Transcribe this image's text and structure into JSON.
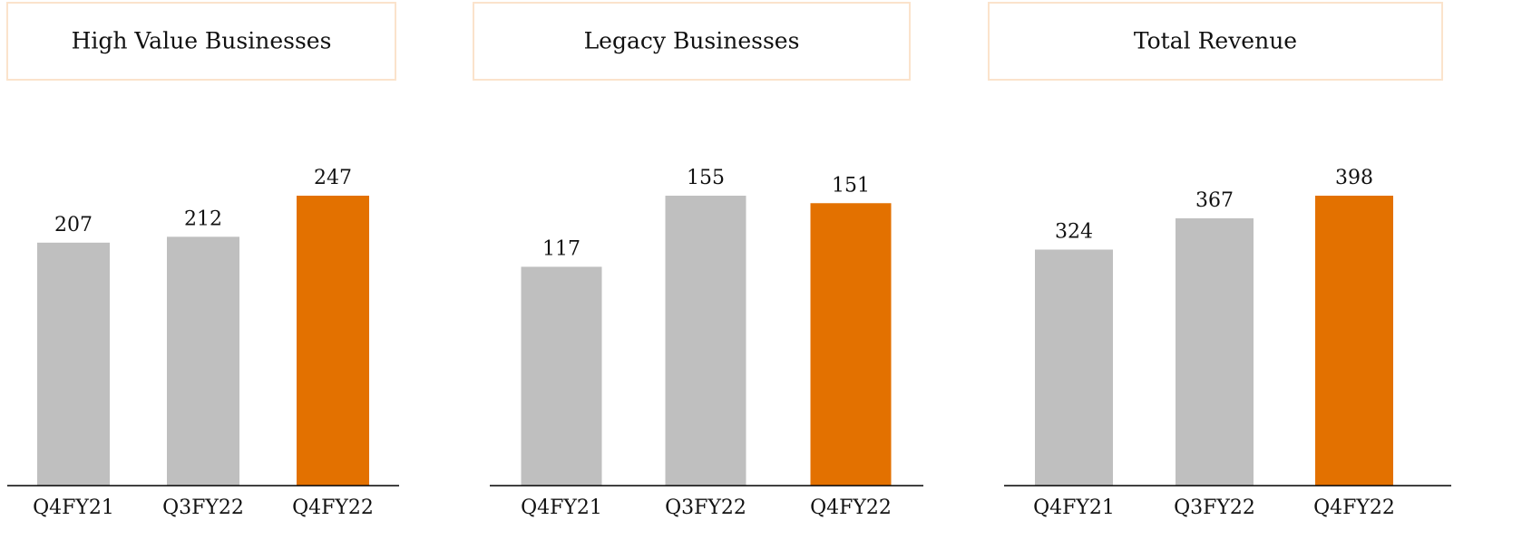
{
  "chart_data": [
    {
      "type": "bar",
      "title": "High Value Businesses",
      "categories": [
        "Q4FY21",
        "Q3FY22",
        "Q4FY22"
      ],
      "values": [
        207,
        212,
        247
      ],
      "colors": [
        "#bfbfbf",
        "#bfbfbf",
        "#e37100"
      ]
    },
    {
      "type": "bar",
      "title": "Legacy Businesses",
      "categories": [
        "Q4FY21",
        "Q3FY22",
        "Q4FY22"
      ],
      "values": [
        117,
        155,
        151
      ],
      "colors": [
        "#bfbfbf",
        "#bfbfbf",
        "#e37100"
      ]
    },
    {
      "type": "bar",
      "title": "Total Revenue",
      "categories": [
        "Q4FY21",
        "Q3FY22",
        "Q4FY22"
      ],
      "values": [
        324,
        367,
        398
      ],
      "colors": [
        "#bfbfbf",
        "#bfbfbf",
        "#e37100"
      ]
    }
  ]
}
